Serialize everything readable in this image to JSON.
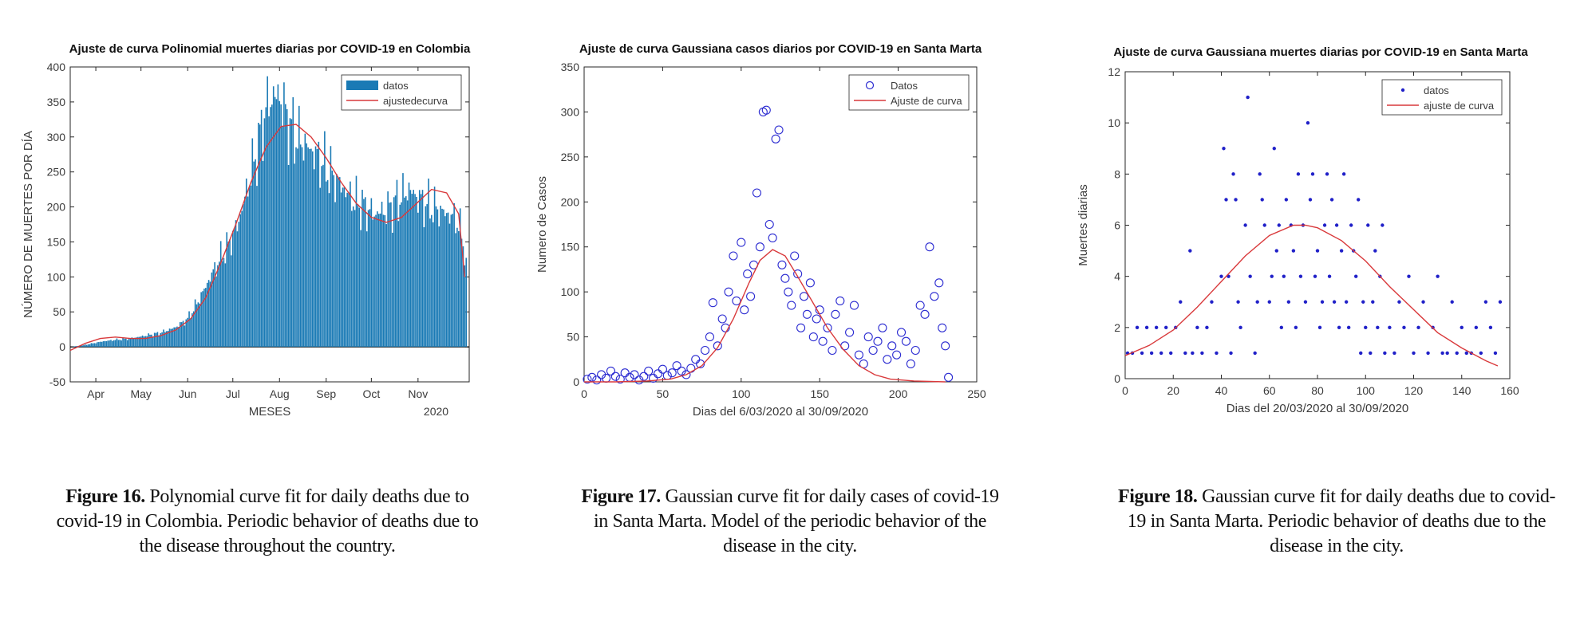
{
  "chart_data": [
    {
      "type": "bar",
      "title": "Ajuste de curva Polinomial muertes diarias por COVID-19  en Colombia",
      "xlabel": "MESES",
      "ylabel": "NÚMERO DE MUERTES POR DÍA",
      "xticks": [
        "Apr",
        "May",
        "Jun",
        "Jul",
        "Aug",
        "Sep",
        "Oct",
        "Nov"
      ],
      "year_label": "2020",
      "yticks": [
        -50,
        0,
        50,
        100,
        150,
        200,
        250,
        300,
        350,
        400
      ],
      "ylim": [
        -50,
        400
      ],
      "x_unit": "days since 2020-03-15",
      "xlim": [
        0,
        265
      ],
      "grid": false,
      "legend_position": "top-right",
      "series": [
        {
          "name": "datos",
          "style": "bar",
          "color": "#1a7ab5",
          "envelope_x": [
            0,
            8,
            15,
            22,
            30,
            40,
            50,
            60,
            70,
            78,
            85,
            92,
            98,
            105,
            112,
            118,
            125,
            130,
            135,
            140,
            145,
            150,
            158,
            165,
            172,
            180,
            188,
            195,
            202,
            210,
            218,
            225,
            230,
            235,
            240,
            245,
            250,
            255,
            258,
            262,
            265
          ],
          "envelope_y": [
            0,
            2,
            5,
            8,
            10,
            12,
            16,
            20,
            28,
            40,
            65,
            95,
            120,
            145,
            180,
            230,
            290,
            340,
            360,
            355,
            320,
            300,
            285,
            270,
            250,
            230,
            210,
            200,
            190,
            195,
            210,
            225,
            215,
            205,
            200,
            195,
            190,
            185,
            175,
            140,
            60
          ]
        },
        {
          "name": "ajustedecurva",
          "style": "line",
          "color": "#d9393b",
          "x": [
            0,
            10,
            20,
            30,
            40,
            50,
            60,
            70,
            80,
            90,
            100,
            110,
            120,
            130,
            140,
            150,
            160,
            170,
            180,
            190,
            200,
            210,
            220,
            230,
            240,
            250,
            258,
            262
          ],
          "y": [
            -5,
            5,
            12,
            14,
            12,
            12,
            16,
            24,
            40,
            70,
            120,
            175,
            235,
            285,
            315,
            318,
            300,
            270,
            235,
            205,
            185,
            178,
            185,
            205,
            225,
            220,
            190,
            100
          ]
        }
      ]
    },
    {
      "type": "scatter",
      "title": "Ajuste de curva Gaussiana casos diarios por COVID-19  en Santa Marta",
      "xlabel": "Dias del 6/03/2020 al 30/09/2020",
      "ylabel": "Numero de Casos",
      "xticks": [
        0,
        50,
        100,
        150,
        200,
        250
      ],
      "yticks": [
        0,
        50,
        100,
        150,
        200,
        250,
        300,
        350
      ],
      "xlim": [
        0,
        250
      ],
      "ylim": [
        0,
        350
      ],
      "grid": false,
      "legend_position": "top-right",
      "series": [
        {
          "name": "Datos",
          "style": "open-circle",
          "color": "#2b2bd1",
          "x": [
            2,
            5,
            8,
            11,
            14,
            17,
            20,
            23,
            26,
            29,
            32,
            35,
            38,
            41,
            44,
            47,
            50,
            53,
            56,
            59,
            62,
            65,
            68,
            71,
            74,
            77,
            80,
            82,
            85,
            88,
            90,
            92,
            95,
            97,
            100,
            102,
            104,
            106,
            108,
            110,
            112,
            114,
            116,
            118,
            120,
            122,
            124,
            126,
            128,
            130,
            132,
            134,
            136,
            138,
            140,
            142,
            144,
            146,
            148,
            150,
            152,
            155,
            158,
            160,
            163,
            166,
            169,
            172,
            175,
            178,
            181,
            184,
            187,
            190,
            193,
            196,
            199,
            202,
            205,
            208,
            211,
            214,
            217,
            220,
            223,
            226,
            228,
            230,
            232
          ],
          "y": [
            3,
            5,
            2,
            8,
            4,
            12,
            6,
            3,
            10,
            5,
            8,
            2,
            6,
            12,
            4,
            9,
            14,
            7,
            10,
            18,
            12,
            8,
            15,
            25,
            20,
            35,
            50,
            88,
            40,
            70,
            60,
            100,
            140,
            90,
            155,
            80,
            120,
            95,
            130,
            210,
            150,
            300,
            302,
            175,
            160,
            270,
            280,
            130,
            115,
            100,
            85,
            140,
            120,
            60,
            95,
            75,
            110,
            50,
            70,
            80,
            45,
            60,
            35,
            75,
            90,
            40,
            55,
            85,
            30,
            20,
            50,
            35,
            45,
            60,
            25,
            40,
            30,
            55,
            45,
            20,
            35,
            85,
            75,
            150,
            95,
            110,
            60,
            40,
            5
          ]
        },
        {
          "name": "Ajuste de curva",
          "style": "line",
          "color": "#d9393b",
          "x": [
            0,
            20,
            40,
            55,
            65,
            75,
            85,
            95,
            105,
            112,
            120,
            128,
            135,
            145,
            155,
            165,
            175,
            185,
            195,
            210,
            230
          ],
          "y": [
            0,
            0,
            1,
            3,
            8,
            18,
            38,
            70,
            110,
            135,
            147,
            140,
            120,
            90,
            60,
            36,
            18,
            8,
            3,
            1,
            0
          ]
        }
      ]
    },
    {
      "type": "scatter",
      "title": "Ajuste de curva Gaussiana muertes diarias por COVID-19 en Santa Marta",
      "xlabel": "Dias del 20/03/2020 al 30/09/2020",
      "ylabel": "Muertes diarias",
      "xticks": [
        0,
        20,
        40,
        60,
        80,
        100,
        120,
        140,
        160
      ],
      "yticks": [
        0,
        2,
        4,
        6,
        8,
        10,
        12
      ],
      "xlim": [
        0,
        160
      ],
      "ylim": [
        0,
        12
      ],
      "grid": false,
      "legend_position": "top-right",
      "series": [
        {
          "name": "datos",
          "style": "dot",
          "color": "#2020c8",
          "x": [
            1,
            3,
            5,
            7,
            9,
            11,
            13,
            15,
            17,
            19,
            21,
            23,
            25,
            27,
            28,
            30,
            32,
            34,
            36,
            38,
            40,
            41,
            42,
            43,
            44,
            45,
            46,
            47,
            48,
            50,
            51,
            52,
            54,
            55,
            56,
            57,
            58,
            60,
            61,
            62,
            63,
            64,
            65,
            66,
            67,
            68,
            69,
            70,
            71,
            72,
            73,
            74,
            75,
            76,
            77,
            78,
            79,
            80,
            81,
            82,
            83,
            84,
            85,
            86,
            87,
            88,
            89,
            90,
            91,
            92,
            93,
            94,
            95,
            96,
            97,
            98,
            99,
            100,
            101,
            102,
            103,
            104,
            105,
            106,
            107,
            108,
            110,
            112,
            114,
            116,
            118,
            120,
            122,
            124,
            126,
            128,
            130,
            132,
            134,
            136,
            138,
            140,
            142,
            144,
            146,
            148,
            150,
            152,
            154,
            156
          ],
          "y": [
            1,
            1,
            2,
            1,
            2,
            1,
            2,
            1,
            2,
            1,
            2,
            3,
            1,
            5,
            1,
            2,
            1,
            2,
            3,
            1,
            4,
            9,
            7,
            4,
            1,
            8,
            7,
            3,
            2,
            6,
            11,
            4,
            1,
            3,
            8,
            7,
            6,
            3,
            4,
            9,
            5,
            6,
            2,
            4,
            7,
            3,
            6,
            5,
            2,
            8,
            4,
            6,
            3,
            10,
            7,
            8,
            4,
            5,
            2,
            3,
            6,
            8,
            4,
            7,
            3,
            6,
            2,
            5,
            8,
            3,
            2,
            6,
            5,
            4,
            7,
            1,
            3,
            2,
            6,
            1,
            3,
            5,
            2,
            4,
            6,
            1,
            2,
            1,
            3,
            2,
            4,
            1,
            2,
            3,
            1,
            2,
            4,
            1,
            1,
            3,
            1,
            2,
            1,
            1,
            2,
            1,
            3,
            2,
            1,
            3
          ]
        },
        {
          "name": "ajuste de curva",
          "style": "line",
          "color": "#d9393b",
          "x": [
            0,
            10,
            20,
            30,
            40,
            50,
            60,
            70,
            75,
            80,
            90,
            100,
            110,
            120,
            130,
            140,
            150,
            155
          ],
          "y": [
            0.9,
            1.3,
            1.9,
            2.8,
            3.8,
            4.8,
            5.6,
            6.0,
            6.0,
            5.9,
            5.4,
            4.6,
            3.6,
            2.7,
            1.8,
            1.2,
            0.7,
            0.5
          ]
        }
      ]
    }
  ],
  "captions": [
    {
      "label": "Figure 16.",
      "text": " Polynomial curve fit for daily deaths due to covid-19 in Colombia. Periodic behavior of deaths due to the disease throughout the country."
    },
    {
      "label": "Figure 17.",
      "text": " Gaussian curve fit for daily cases of covid-19 in Santa Marta. Model of the periodic behavior of the disease in the city."
    },
    {
      "label": "Figure 18.",
      "text": " Gaussian curve fit for daily deaths due to covid-19 in Santa Marta. Periodic behavior of deaths due to the disease in the city."
    }
  ]
}
